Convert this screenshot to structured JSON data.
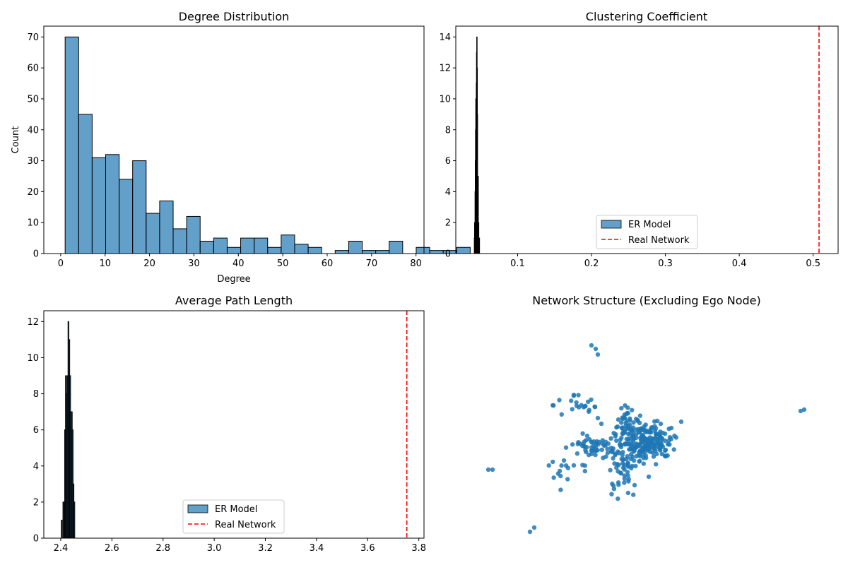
{
  "chart_data": [
    {
      "type": "bar",
      "title": "Degree Distribution",
      "xlabel": "Degree",
      "ylabel": "Count",
      "xlim": [
        -3.8,
        81.8
      ],
      "ylim": [
        0,
        73.5
      ],
      "xticks": [
        0,
        10,
        20,
        30,
        40,
        50,
        60,
        70,
        80
      ],
      "yticks": [
        0,
        10,
        20,
        30,
        40,
        50,
        60,
        70
      ],
      "bin_start": 1,
      "bin_width": 3.04,
      "values": [
        70,
        45,
        31,
        32,
        24,
        30,
        13,
        17,
        8,
        12,
        4,
        5,
        2,
        5,
        5,
        2,
        6,
        3,
        2,
        0,
        1,
        4,
        1,
        1,
        4,
        0,
        2,
        1,
        1,
        2
      ],
      "bar_color": "#1f77b4",
      "edge_color": "#000000",
      "grid": false
    },
    {
      "type": "bar",
      "title": "Clustering Coefficient",
      "xlabel": "",
      "ylabel": "",
      "xlim": [
        0.0163,
        0.5338
      ],
      "ylim": [
        0,
        14.7
      ],
      "xticks": [
        0.1,
        0.2,
        0.3,
        0.4,
        0.5
      ],
      "xtick_labels": [
        "0.1",
        "0.2",
        "0.3",
        "0.4",
        "0.5"
      ],
      "yticks": [
        0,
        2,
        4,
        6,
        8,
        10,
        12,
        14
      ],
      "bin_start": 0.0413,
      "bin_width": 0.00033,
      "values": [
        1,
        2,
        1,
        4,
        6,
        8,
        10,
        7,
        11,
        13,
        14,
        12,
        9,
        5,
        4,
        5,
        2,
        2,
        1,
        1,
        1
      ],
      "reference_line": {
        "label": "Real Network",
        "x": 0.508,
        "color": "#ff0000",
        "style": "dashed"
      },
      "legend": {
        "position": "lower center",
        "entries": [
          "ER Model",
          "Real Network"
        ]
      },
      "bar_color": "#1f77b4",
      "edge_color": "#000000",
      "grid": false
    },
    {
      "type": "bar",
      "title": "Average Path Length",
      "xlabel": "",
      "ylabel": "",
      "xlim": [
        2.3338,
        3.8202
      ],
      "ylim": [
        0,
        12.6
      ],
      "xticks": [
        2.4,
        2.6,
        2.8,
        3.0,
        3.2,
        3.4,
        3.6,
        3.8
      ],
      "xtick_labels": [
        "2.4",
        "2.6",
        "2.8",
        "3.0",
        "3.2",
        "3.4",
        "3.6",
        "3.8"
      ],
      "yticks": [
        0,
        2,
        4,
        6,
        8,
        10,
        12
      ],
      "bin_start": 2.402,
      "bin_width": 0.0033,
      "values": [
        1,
        0,
        2,
        2,
        6,
        9,
        8,
        9,
        12,
        11,
        9,
        7,
        7,
        6,
        3,
        2,
        0
      ],
      "reference_line": {
        "label": "Real Network",
        "x": 3.753,
        "color": "#ff0000",
        "style": "dashed"
      },
      "legend": {
        "position": "lower center",
        "entries": [
          "ER Model",
          "Real Network"
        ]
      },
      "bar_color": "#1f77b4",
      "edge_color": "#000000",
      "grid": false
    },
    {
      "type": "scatter",
      "title": "Network Structure (Excluding Ego Node)",
      "axes_visible": false,
      "xlim": [
        0,
        570
      ],
      "ylim": [
        0,
        360
      ],
      "node_color": "#1f77b4",
      "clusters": [
        {
          "cx": 297,
          "cy": 185,
          "sx": 20,
          "sy": 14,
          "n": 220
        },
        {
          "cx": 225,
          "cy": 192,
          "sx": 15,
          "sy": 7,
          "n": 50
        },
        {
          "cx": 273,
          "cy": 155,
          "sx": 9,
          "sy": 8,
          "n": 28
        },
        {
          "cx": 265,
          "cy": 210,
          "sx": 14,
          "sy": 12,
          "n": 40
        },
        {
          "cx": 205,
          "cy": 135,
          "sx": 18,
          "sy": 14,
          "n": 22
        },
        {
          "cx": 188,
          "cy": 225,
          "sx": 22,
          "sy": 11,
          "n": 14
        },
        {
          "cx": 262,
          "cy": 245,
          "sx": 12,
          "sy": 10,
          "n": 14
        }
      ],
      "points": [
        [
          222,
          49
        ],
        [
          228,
          54
        ],
        [
          231,
          62
        ],
        [
          523,
          140
        ],
        [
          518,
          142
        ],
        [
          76,
          225
        ],
        [
          82,
          225
        ],
        [
          141,
          307
        ],
        [
          135,
          313
        ],
        [
          335,
          166
        ],
        [
          319,
          178
        ],
        [
          330,
          189
        ],
        [
          303,
          235
        ],
        [
          283,
          247
        ],
        [
          231,
          152
        ],
        [
          236,
          160
        ],
        [
          183,
          212
        ],
        [
          197,
          219
        ]
      ]
    }
  ],
  "legend_labels": {
    "er_model": "ER Model",
    "real_network": "Real Network"
  }
}
